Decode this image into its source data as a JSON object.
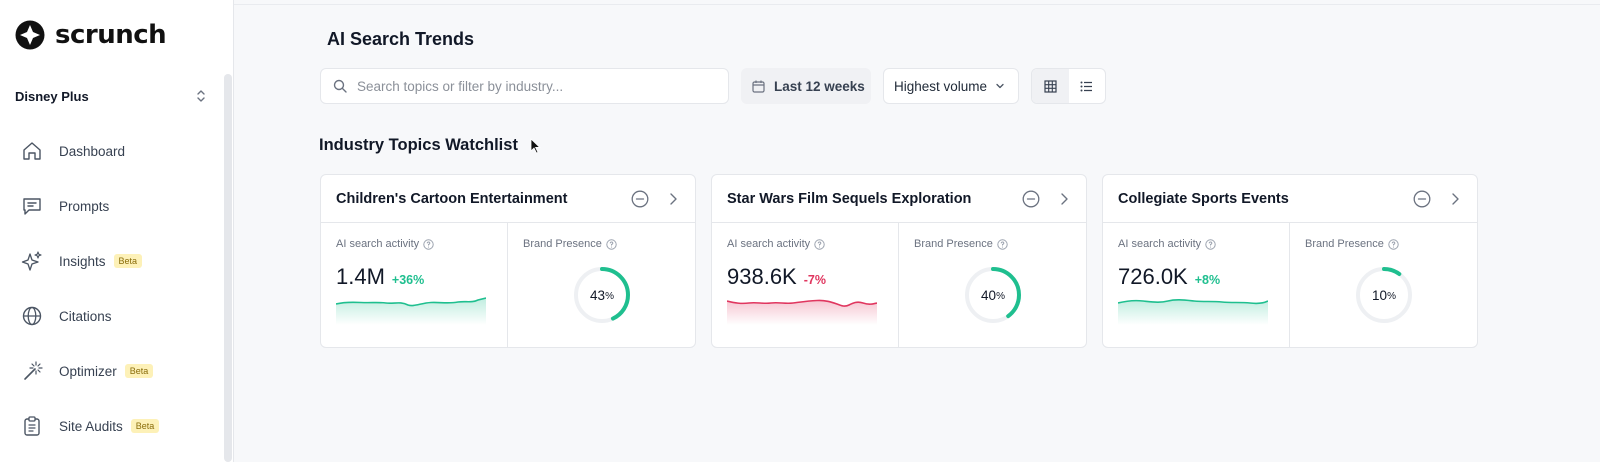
{
  "app": {
    "name": "scrunch"
  },
  "workspace": {
    "name": "Disney Plus"
  },
  "sidebar": {
    "items": [
      {
        "label": "Dashboard",
        "icon": "home-icon",
        "beta": ""
      },
      {
        "label": "Prompts",
        "icon": "message-icon",
        "beta": ""
      },
      {
        "label": "Insights",
        "icon": "sparkles-icon",
        "beta": "Beta"
      },
      {
        "label": "Citations",
        "icon": "globe-icon",
        "beta": ""
      },
      {
        "label": "Optimizer",
        "icon": "magic-wand-icon",
        "beta": "Beta"
      },
      {
        "label": "Site Audits",
        "icon": "clipboard-icon",
        "beta": "Beta"
      }
    ]
  },
  "header": {
    "title": "AI Search Trends",
    "search_placeholder": "Search topics or filter by industry...",
    "search_value": "",
    "date_range": "Last 12 weeks",
    "sort": "Highest volume",
    "view_mode": "grid"
  },
  "watchlist": {
    "title": "Industry Topics Watchlist",
    "activity_label": "AI search activity",
    "presence_label": "Brand Presence",
    "cards": [
      {
        "title": "Children's Cartoon Entertainment",
        "activity": "1.4M",
        "change": "+36%",
        "trend": "up",
        "presence_value": "43",
        "presence_unit": "%",
        "presence": 0.43
      },
      {
        "title": "Star Wars Film Sequels Exploration",
        "activity": "938.6K",
        "change": "-7%",
        "trend": "down",
        "presence_value": "40",
        "presence_unit": "%",
        "presence": 0.4
      },
      {
        "title": "Collegiate Sports Events",
        "activity": "726.0K",
        "change": "+8%",
        "trend": "up",
        "presence_value": "10",
        "presence_unit": "%",
        "presence": 0.1
      }
    ]
  },
  "colors": {
    "positive": "#1fbf8f",
    "negative": "#e0365f",
    "donut_track": "#eef0f3",
    "beta_bg": "#fdf1b8"
  }
}
